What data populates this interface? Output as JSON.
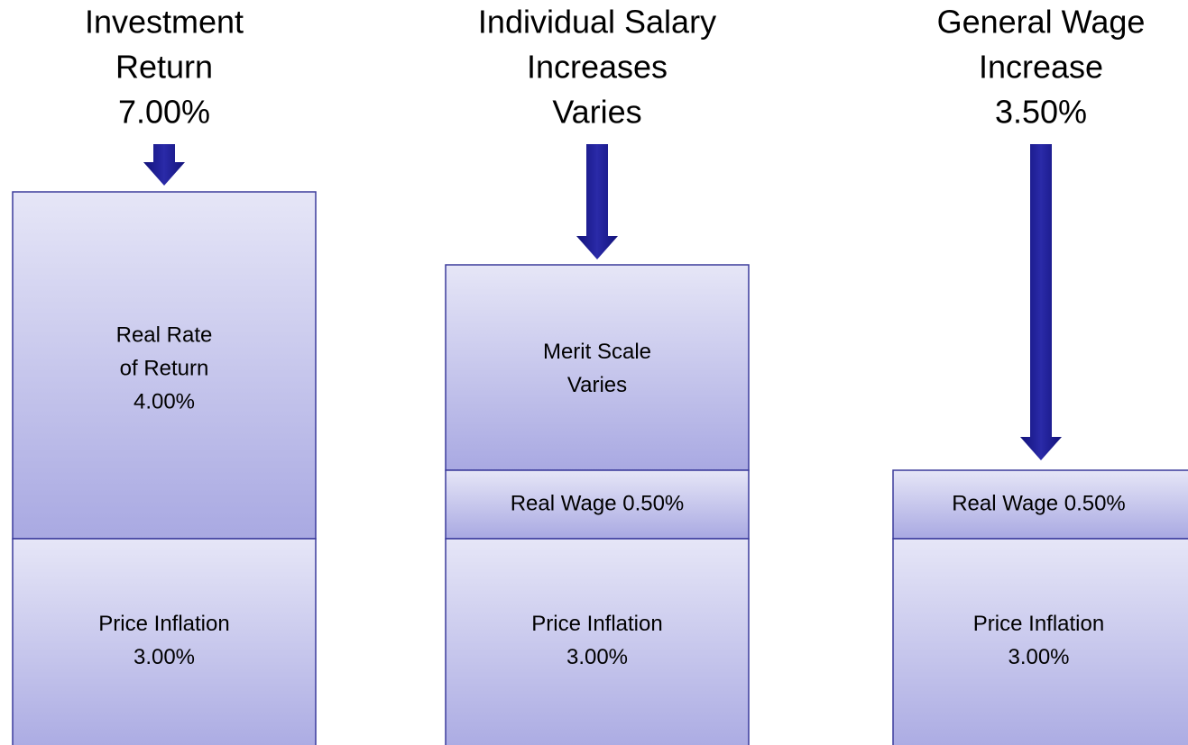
{
  "columns": [
    {
      "heading": [
        "Investment",
        "Return",
        "7.00%"
      ],
      "boxes": [
        {
          "lines": [
            "Real Rate",
            "of Return",
            "4.00%"
          ]
        },
        {
          "lines": [
            "Price Inflation",
            "3.00%"
          ]
        }
      ]
    },
    {
      "heading": [
        "Individual Salary",
        "Increases",
        "Varies"
      ],
      "boxes": [
        {
          "lines": [
            "Merit Scale",
            "Varies"
          ]
        },
        {
          "lines": [
            "Real Wage 0.50%"
          ]
        },
        {
          "lines": [
            "Price Inflation",
            "3.00%"
          ]
        }
      ]
    },
    {
      "heading": [
        "General Wage",
        "Increase",
        "3.50%"
      ],
      "boxes": [
        {
          "lines": [
            "Real Wage 0.50%"
          ]
        },
        {
          "lines": [
            "Price Inflation",
            "3.00%"
          ]
        }
      ]
    }
  ]
}
